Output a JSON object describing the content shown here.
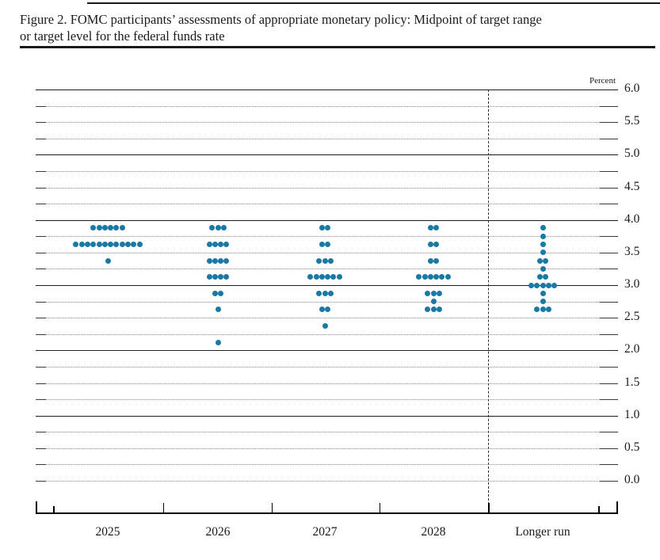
{
  "figure": {
    "title_line1": "Figure 2. FOMC participants’ assessments of appropriate monetary policy: Midpoint of target range",
    "title_line2": "or target level for the federal funds rate"
  },
  "chart_data": {
    "type": "scatter",
    "subtype": "fomc-dot-plot",
    "title": "FOMC participants’ assessments of appropriate monetary policy: Midpoint of target range or target level for the federal funds rate",
    "unit_label": "Percent",
    "ylim": [
      0.0,
      6.0
    ],
    "y_gridline_step": 0.25,
    "y_label_step": 0.5,
    "y_tick_labels": [
      "6.0",
      "5.5",
      "5.0",
      "4.5",
      "4.0",
      "3.5",
      "3.0",
      "2.5",
      "2.0",
      "1.5",
      "1.0",
      "0.5",
      "0.0"
    ],
    "grid": "dotted gridlines at each 0.25; solid horizontal lines at integer percents; dashed vertical separator before Longer run",
    "legend_position": "none",
    "dot_color": "#1a78a4",
    "categories": [
      "2025",
      "2026",
      "2027",
      "2028",
      "Longer run"
    ],
    "series": [
      {
        "name": "2025",
        "dots": [
          {
            "rate": 3.875,
            "count": 6
          },
          {
            "rate": 3.625,
            "count": 12
          },
          {
            "rate": 3.375,
            "count": 1
          }
        ]
      },
      {
        "name": "2026",
        "dots": [
          {
            "rate": 3.875,
            "count": 3
          },
          {
            "rate": 3.625,
            "count": 4
          },
          {
            "rate": 3.375,
            "count": 4
          },
          {
            "rate": 3.125,
            "count": 4
          },
          {
            "rate": 2.875,
            "count": 2
          },
          {
            "rate": 2.625,
            "count": 1
          },
          {
            "rate": 2.125,
            "count": 1
          }
        ]
      },
      {
        "name": "2027",
        "dots": [
          {
            "rate": 3.875,
            "count": 2
          },
          {
            "rate": 3.625,
            "count": 2
          },
          {
            "rate": 3.375,
            "count": 3
          },
          {
            "rate": 3.125,
            "count": 6
          },
          {
            "rate": 2.875,
            "count": 3
          },
          {
            "rate": 2.625,
            "count": 2
          },
          {
            "rate": 2.375,
            "count": 1
          }
        ]
      },
      {
        "name": "2028",
        "dots": [
          {
            "rate": 3.875,
            "count": 2
          },
          {
            "rate": 3.625,
            "count": 2
          },
          {
            "rate": 3.375,
            "count": 2
          },
          {
            "rate": 3.125,
            "count": 6
          },
          {
            "rate": 2.875,
            "count": 3
          },
          {
            "rate": 2.75,
            "count": 1
          },
          {
            "rate": 2.625,
            "count": 3
          }
        ]
      },
      {
        "name": "Longer run",
        "dots": [
          {
            "rate": 3.875,
            "count": 1
          },
          {
            "rate": 3.75,
            "count": 1
          },
          {
            "rate": 3.625,
            "count": 1
          },
          {
            "rate": 3.5,
            "count": 1
          },
          {
            "rate": 3.375,
            "count": 2
          },
          {
            "rate": 3.25,
            "count": 1
          },
          {
            "rate": 3.125,
            "count": 2
          },
          {
            "rate": 3.0,
            "count": 5
          },
          {
            "rate": 2.875,
            "count": 1
          },
          {
            "rate": 2.75,
            "count": 1
          },
          {
            "rate": 2.625,
            "count": 3
          }
        ]
      }
    ]
  }
}
